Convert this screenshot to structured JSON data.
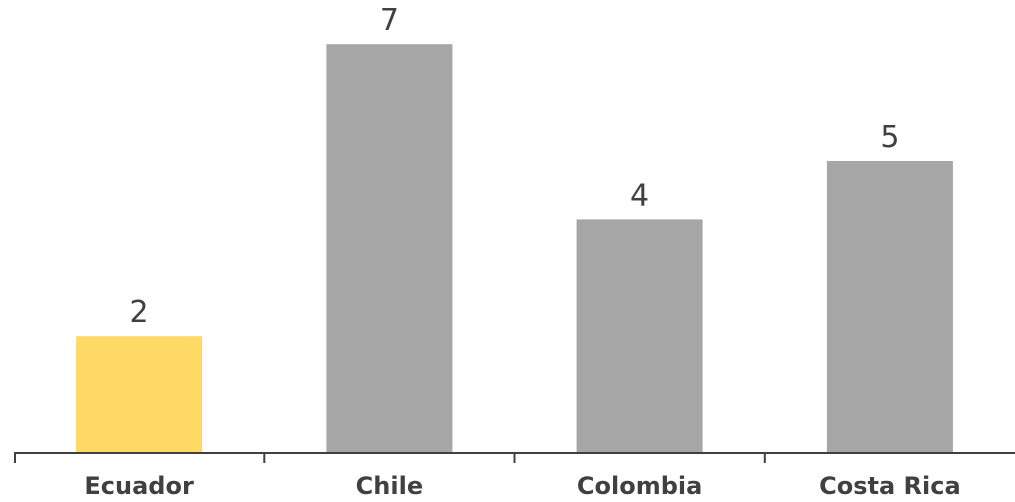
{
  "chart_data": {
    "type": "bar",
    "categories": [
      "Ecuador",
      "Chile",
      "Colombia",
      "Costa Rica"
    ],
    "values": [
      2,
      7,
      4,
      5
    ],
    "title": "",
    "xlabel": "",
    "ylabel": "",
    "ylim": [
      0,
      7.5
    ],
    "grid": false,
    "data_labels": true,
    "colors": {
      "highlight": "#FFD966",
      "default": "#A6A6A6",
      "highlight_index": 0
    }
  }
}
